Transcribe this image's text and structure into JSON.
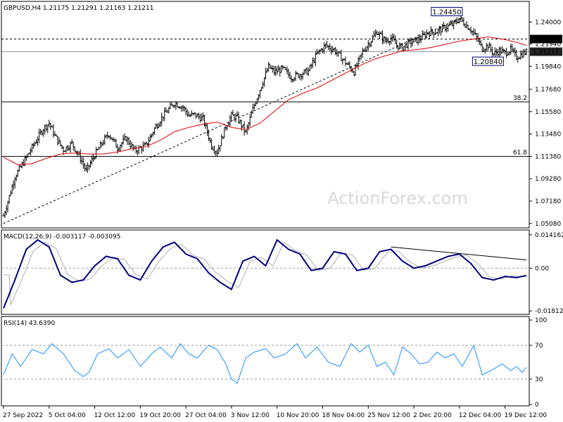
{
  "chart_data": [
    {
      "type": "line",
      "panel": "price",
      "title": "GBPUSD,H4  1.21175 1.21291 1.21163 1.21211",
      "watermark": "ActionForex.com",
      "ylim": [
        1.048,
        1.258
      ],
      "y_ticks": [
        "1.24000",
        "1.21940",
        "1.19840",
        "1.17680",
        "1.15580",
        "1.13480",
        "1.11380",
        "1.09280",
        "1.07180",
        "1.05080"
      ],
      "y_tick_values": [
        1.24,
        1.2194,
        1.1984,
        1.1768,
        1.1558,
        1.1348,
        1.1138,
        1.0928,
        1.0718,
        1.0508
      ],
      "x_ticks": [
        "27 Sep 2022",
        "5 Oct 04:00",
        "12 Oct 12:00",
        "19 Oct 20:00",
        "27 Oct 04:00",
        "3 Nov 12:00",
        "10 Nov 20:00",
        "18 Nov 04:00",
        "25 Nov 12:00",
        "2 Dec 20:00",
        "12 Dec 04:00",
        "19 Dec 12:00"
      ],
      "x_tick_index": [
        0,
        32,
        64,
        96,
        128,
        160,
        192,
        224,
        256,
        288,
        320,
        352
      ],
      "bar_count": 368,
      "price_anchors": {
        "index": [
          0,
          4,
          8,
          14,
          20,
          28,
          32,
          36,
          42,
          48,
          54,
          58,
          64,
          70,
          74,
          80,
          86,
          92,
          100,
          106,
          112,
          120,
          126,
          130,
          134,
          140,
          146,
          150,
          156,
          160,
          164,
          170,
          176,
          182,
          186,
          190,
          196,
          202,
          206,
          214,
          220,
          226,
          232,
          238,
          246,
          252,
          258,
          262,
          268,
          272,
          276,
          280,
          284,
          288,
          292,
          298,
          304,
          310,
          316,
          320,
          324,
          328,
          332,
          336,
          340,
          344,
          348,
          352,
          356,
          360,
          364,
          367
        ],
        "close": [
          1.058,
          1.076,
          1.095,
          1.108,
          1.122,
          1.14,
          1.145,
          1.133,
          1.12,
          1.126,
          1.112,
          1.1,
          1.115,
          1.128,
          1.135,
          1.122,
          1.131,
          1.119,
          1.124,
          1.14,
          1.152,
          1.164,
          1.16,
          1.152,
          1.153,
          1.149,
          1.124,
          1.118,
          1.142,
          1.152,
          1.15,
          1.136,
          1.162,
          1.184,
          1.198,
          1.193,
          1.196,
          1.188,
          1.19,
          1.194,
          1.21,
          1.218,
          1.214,
          1.205,
          1.193,
          1.212,
          1.223,
          1.231,
          1.222,
          1.225,
          1.218,
          1.216,
          1.22,
          1.222,
          1.224,
          1.23,
          1.231,
          1.235,
          1.238,
          1.243,
          1.238,
          1.233,
          1.225,
          1.215,
          1.218,
          1.21,
          1.213,
          1.211,
          1.214,
          1.207,
          1.21,
          1.212
        ]
      },
      "sma_anchors": {
        "index": [
          0,
          10,
          20,
          30,
          40,
          50,
          60,
          70,
          80,
          90,
          100,
          110,
          120,
          130,
          140,
          150,
          160,
          170,
          180,
          190,
          200,
          210,
          220,
          230,
          240,
          250,
          260,
          270,
          280,
          290,
          300,
          310,
          320,
          330,
          340,
          350,
          360,
          367
        ],
        "values": [
          1.113,
          1.106,
          1.107,
          1.112,
          1.116,
          1.117,
          1.116,
          1.116,
          1.118,
          1.121,
          1.123,
          1.129,
          1.137,
          1.141,
          1.144,
          1.146,
          1.141,
          1.139,
          1.145,
          1.156,
          1.167,
          1.173,
          1.178,
          1.185,
          1.192,
          1.199,
          1.205,
          1.209,
          1.213,
          1.214,
          1.216,
          1.219,
          1.222,
          1.224,
          1.226,
          1.224,
          1.221,
          1.218
        ]
      },
      "horizontal_levels": [
        {
          "value": 1.224,
          "label": "1.22400",
          "style": "dashed"
        },
        {
          "value": 1.2121,
          "label": "1.21211",
          "style": "solid-gray"
        },
        {
          "value": 1.165,
          "label": "38.2",
          "style": "solid"
        },
        {
          "value": 1.1138,
          "label": "61.8",
          "style": "solid"
        }
      ],
      "annotations": [
        {
          "text": "1.24450",
          "index": 322,
          "value": 1.2445
        },
        {
          "text": "1.20840",
          "index": 342,
          "value": 1.2084
        }
      ],
      "trendline": {
        "from": [
          0,
          1.0508
        ],
        "to": [
          322,
          1.2445
        ]
      }
    },
    {
      "type": "line",
      "panel": "macd",
      "title": "MACD(12,26,9) -0.003117 -0.003095",
      "ylim": [
        -0.019,
        0.015
      ],
      "y_ticks": [
        "0.014162",
        "0.00",
        "-0.018121"
      ],
      "y_tick_values": [
        0.014162,
        0.0,
        -0.018121
      ],
      "macd_anchors": {
        "index": [
          0,
          8,
          16,
          24,
          32,
          40,
          48,
          56,
          64,
          72,
          80,
          88,
          96,
          104,
          112,
          120,
          128,
          136,
          144,
          152,
          160,
          168,
          176,
          184,
          192,
          200,
          208,
          216,
          224,
          232,
          240,
          248,
          256,
          264,
          272,
          280,
          288,
          296,
          304,
          312,
          320,
          328,
          336,
          344,
          352,
          360,
          367
        ],
        "values": [
          -0.017,
          -0.005,
          0.008,
          0.012,
          0.009,
          -0.003,
          -0.006,
          -0.005,
          0.001,
          0.005,
          0.004,
          -0.003,
          -0.005,
          0.003,
          0.009,
          0.011,
          0.006,
          0.004,
          -0.002,
          -0.006,
          -0.009,
          0.003,
          0.005,
          0.001,
          0.012,
          0.008,
          0.006,
          -0.001,
          0.0,
          0.007,
          0.006,
          -0.001,
          0.0,
          0.007,
          0.008,
          0.003,
          0.0,
          0.001,
          0.003,
          0.005,
          0.006,
          0.002,
          -0.004,
          -0.005,
          -0.0035,
          -0.004,
          -0.0031
        ]
      },
      "trendline": {
        "from": [
          272,
          0.009
        ],
        "to": [
          367,
          0.0035
        ]
      }
    },
    {
      "type": "line",
      "panel": "rsi",
      "title": "RSI(14) 43.6390",
      "ylim": [
        0,
        100
      ],
      "y_ticks": [
        "100",
        "70",
        "30",
        "0"
      ],
      "y_tick_values": [
        100,
        70,
        30,
        0
      ],
      "levels": [
        70,
        30
      ],
      "rsi_anchors": {
        "index": [
          0,
          6,
          12,
          20,
          28,
          34,
          42,
          50,
          56,
          60,
          66,
          74,
          80,
          88,
          96,
          104,
          110,
          118,
          124,
          130,
          136,
          144,
          150,
          156,
          160,
          164,
          170,
          176,
          184,
          190,
          198,
          206,
          212,
          220,
          228,
          236,
          244,
          250,
          256,
          262,
          268,
          274,
          280,
          286,
          292,
          298,
          304,
          310,
          316,
          322,
          330,
          336,
          342,
          350,
          356,
          360,
          364,
          367
        ],
        "values": [
          35,
          60,
          45,
          65,
          60,
          72,
          60,
          40,
          33,
          38,
          60,
          66,
          55,
          65,
          45,
          60,
          68,
          55,
          72,
          60,
          55,
          70,
          65,
          48,
          30,
          25,
          55,
          62,
          66,
          55,
          60,
          72,
          55,
          68,
          50,
          45,
          72,
          62,
          70,
          45,
          50,
          35,
          68,
          60,
          48,
          50,
          62,
          55,
          60,
          45,
          70,
          35,
          40,
          48,
          40,
          45,
          38,
          44
        ]
      }
    }
  ]
}
